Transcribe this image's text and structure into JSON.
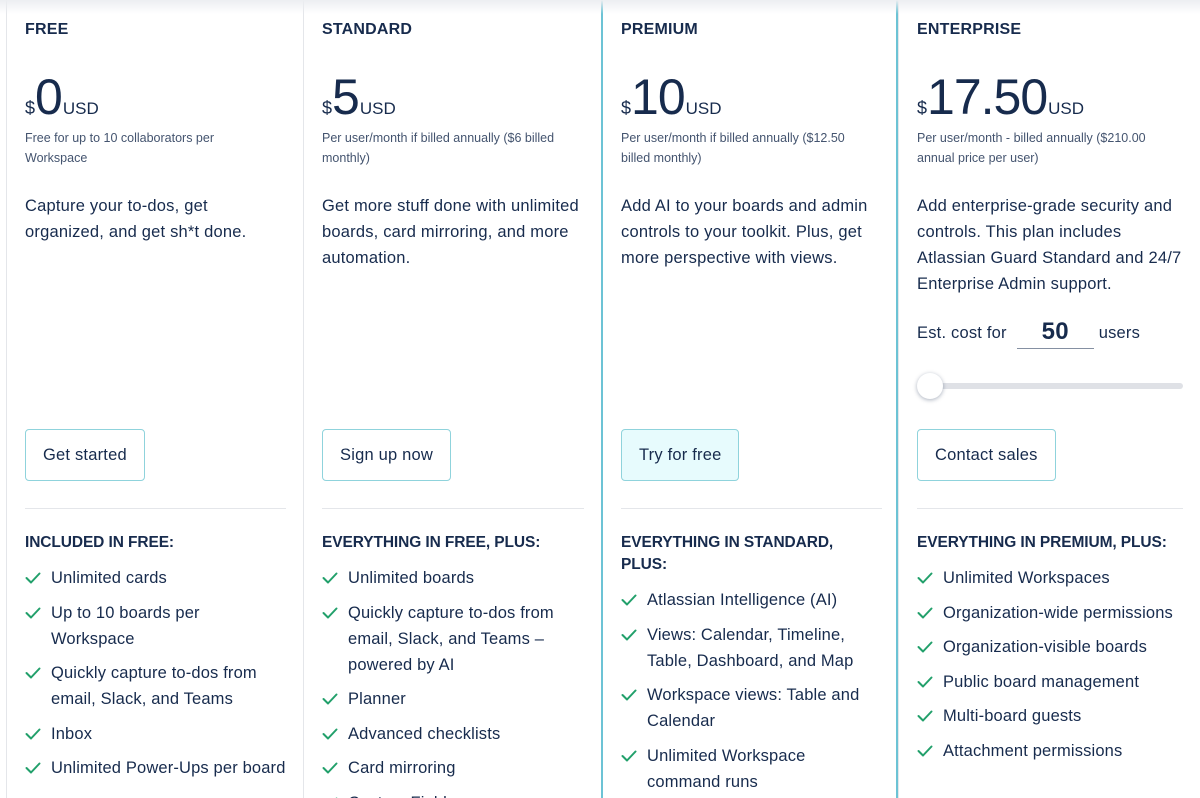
{
  "plans": [
    {
      "name": "FREE",
      "currency": "$",
      "price": "0",
      "unit": "USD",
      "note": "Free for up to 10 collaborators per Workspace",
      "description": "Capture your to-dos, get organized, and get sh*t done.",
      "button": "Get started",
      "features_heading": "INCLUDED IN FREE:",
      "features": [
        "Unlimited cards",
        "Up to 10 boards per Workspace",
        "Quickly capture to-dos from email, Slack, and Teams",
        "Inbox",
        "Unlimited Power-Ups per board"
      ]
    },
    {
      "name": "STANDARD",
      "currency": "$",
      "price": "5",
      "unit": "USD",
      "note": "Per user/month if billed annually ($6 billed monthly)",
      "description": "Get more stuff done with unlimited boards, card mirroring, and more automation.",
      "button": "Sign up now",
      "features_heading": "EVERYTHING IN FREE, PLUS:",
      "features": [
        "Unlimited boards",
        "Quickly capture to-dos from email, Slack, and Teams – powered by AI",
        "Planner",
        "Advanced checklists",
        "Card mirroring",
        "Custom Fields"
      ]
    },
    {
      "name": "PREMIUM",
      "currency": "$",
      "price": "10",
      "unit": "USD",
      "note": "Per user/month if billed annually ($12.50 billed monthly)",
      "description": "Add AI to your boards and admin controls to your toolkit. Plus, get more perspective with views.",
      "button": "Try for free",
      "features_heading": "EVERYTHING IN STANDARD, PLUS:",
      "features": [
        "Atlassian Intelligence (AI)",
        "Views: Calendar, Timeline, Table, Dashboard, and Map",
        "Workspace views: Table and Calendar",
        "Unlimited Workspace command runs"
      ]
    },
    {
      "name": "ENTERPRISE",
      "currency": "$",
      "price": "17.50",
      "unit": "USD",
      "note": "Per user/month - billed annually ($210.00 annual price per user)",
      "description": "Add enterprise-grade security and controls. This plan includes Atlassian Guard Standard and 24/7 Enterprise Admin support.",
      "estimate": {
        "label": "Est. cost for",
        "users": "50",
        "suffix": "users"
      },
      "button": "Contact sales",
      "features_heading": "EVERYTHING IN PREMIUM, PLUS:",
      "features": [
        "Unlimited Workspaces",
        "Organization-wide permissions",
        "Organization-visible boards",
        "Public board management",
        "Multi-board guests",
        "Attachment permissions"
      ]
    }
  ]
}
